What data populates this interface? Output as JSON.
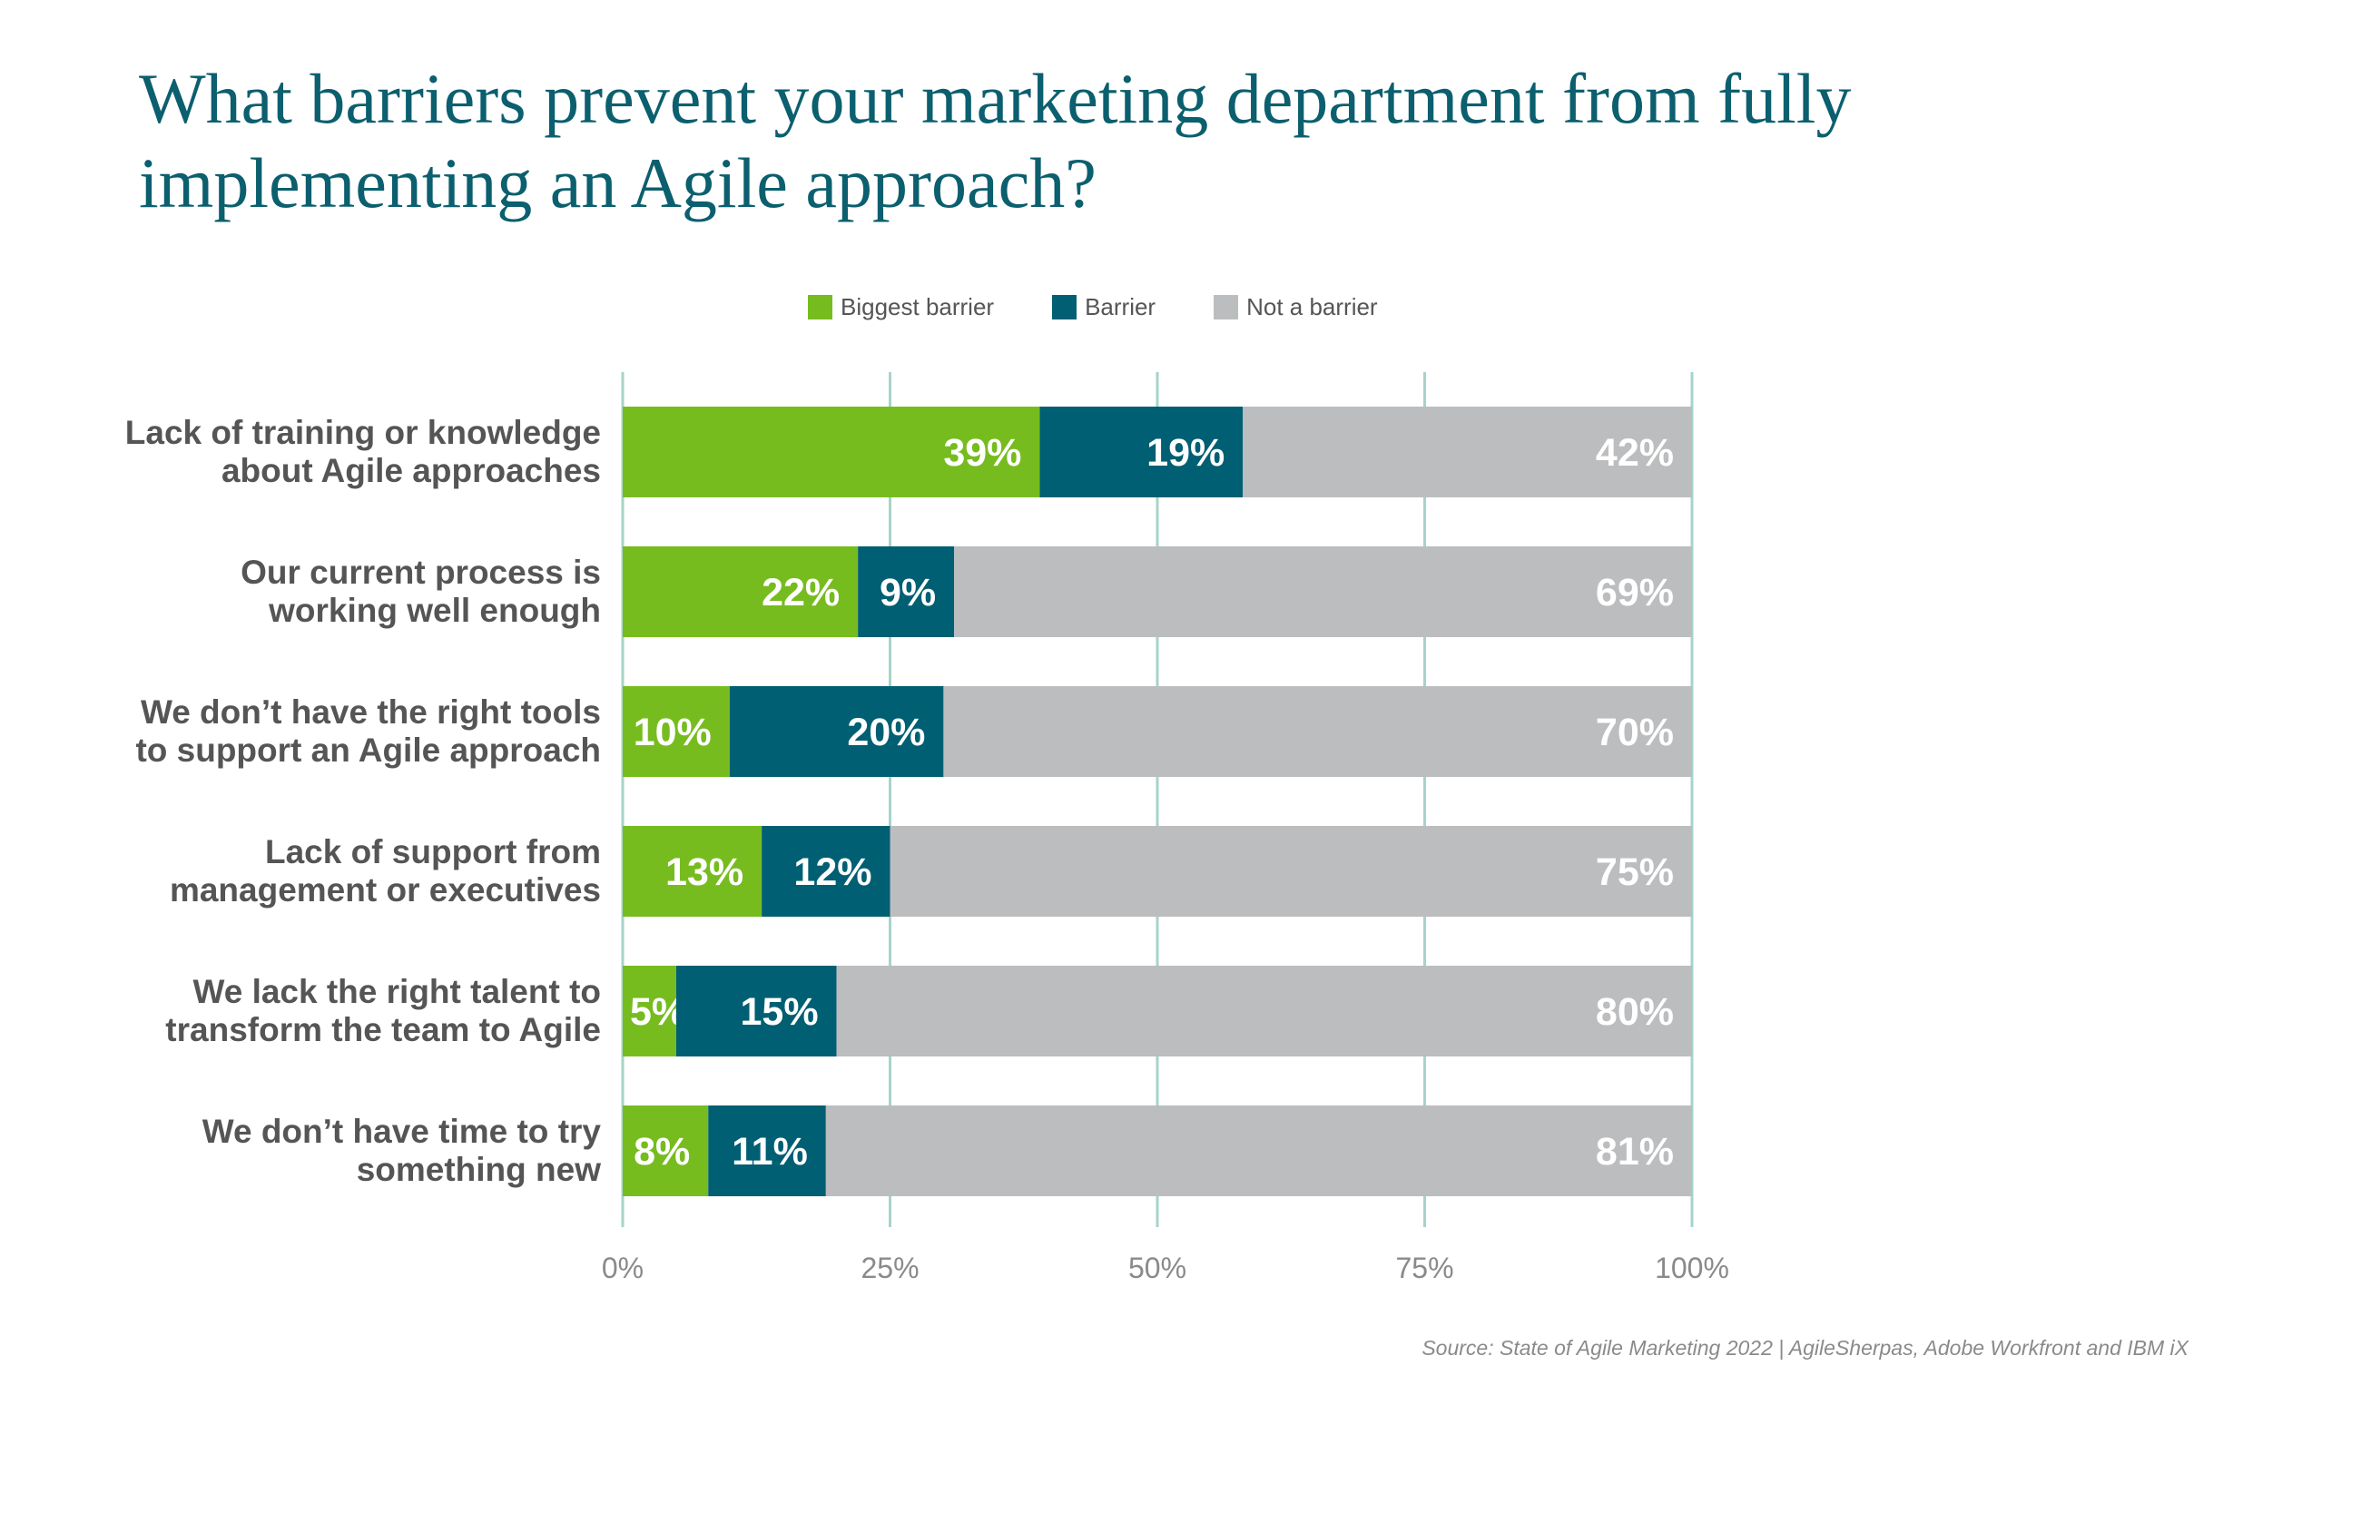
{
  "title_lines": [
    "What barriers prevent your marketing department from fully",
    "implementing an Agile approach?"
  ],
  "colors": {
    "biggest_barrier": "#77bc1f",
    "barrier": "#005f72",
    "not_a_barrier": "#bcbdbf",
    "gridline": "#a6d3cb",
    "title": "#0b5f6e"
  },
  "source": "Source: State of Agile Marketing 2022 | AgileSherpas, Adobe Workfront and IBM iX",
  "chart_data": {
    "type": "bar",
    "orientation": "horizontal",
    "stacked": true,
    "title": "What barriers prevent your marketing department from fully implementing an Agile approach?",
    "categories": [
      [
        "Lack of training or knowledge",
        "about Agile approaches"
      ],
      [
        "Our current process is",
        "working well enough"
      ],
      [
        "We don’t have the right tools",
        "to support an Agile approach"
      ],
      [
        "Lack of support from",
        "management or executives"
      ],
      [
        "We lack the right talent to",
        "transform the team to Agile"
      ],
      [
        "We don’t have time to try",
        "something new"
      ]
    ],
    "series": [
      {
        "name": "Biggest barrier",
        "values": [
          39,
          22,
          10,
          13,
          5,
          8
        ],
        "labels": [
          "39%",
          "22%",
          "10%",
          "13%",
          "5%",
          "8%"
        ]
      },
      {
        "name": "Barrier",
        "values": [
          19,
          9,
          20,
          12,
          15,
          11
        ],
        "labels": [
          "19%",
          "9%",
          "20%",
          "12%",
          "15%",
          "11%"
        ]
      },
      {
        "name": "Not a barrier",
        "values": [
          42,
          69,
          70,
          75,
          80,
          81
        ],
        "labels": [
          "42%",
          "69%",
          "70%",
          "75%",
          "80%",
          "81%"
        ]
      }
    ],
    "xlim": [
      0,
      100
    ],
    "x_ticks": [
      0,
      25,
      50,
      75,
      100
    ],
    "x_tick_labels": [
      "0%",
      "25%",
      "50%",
      "75%",
      "100%"
    ],
    "grid": true,
    "legend_position": "top"
  }
}
